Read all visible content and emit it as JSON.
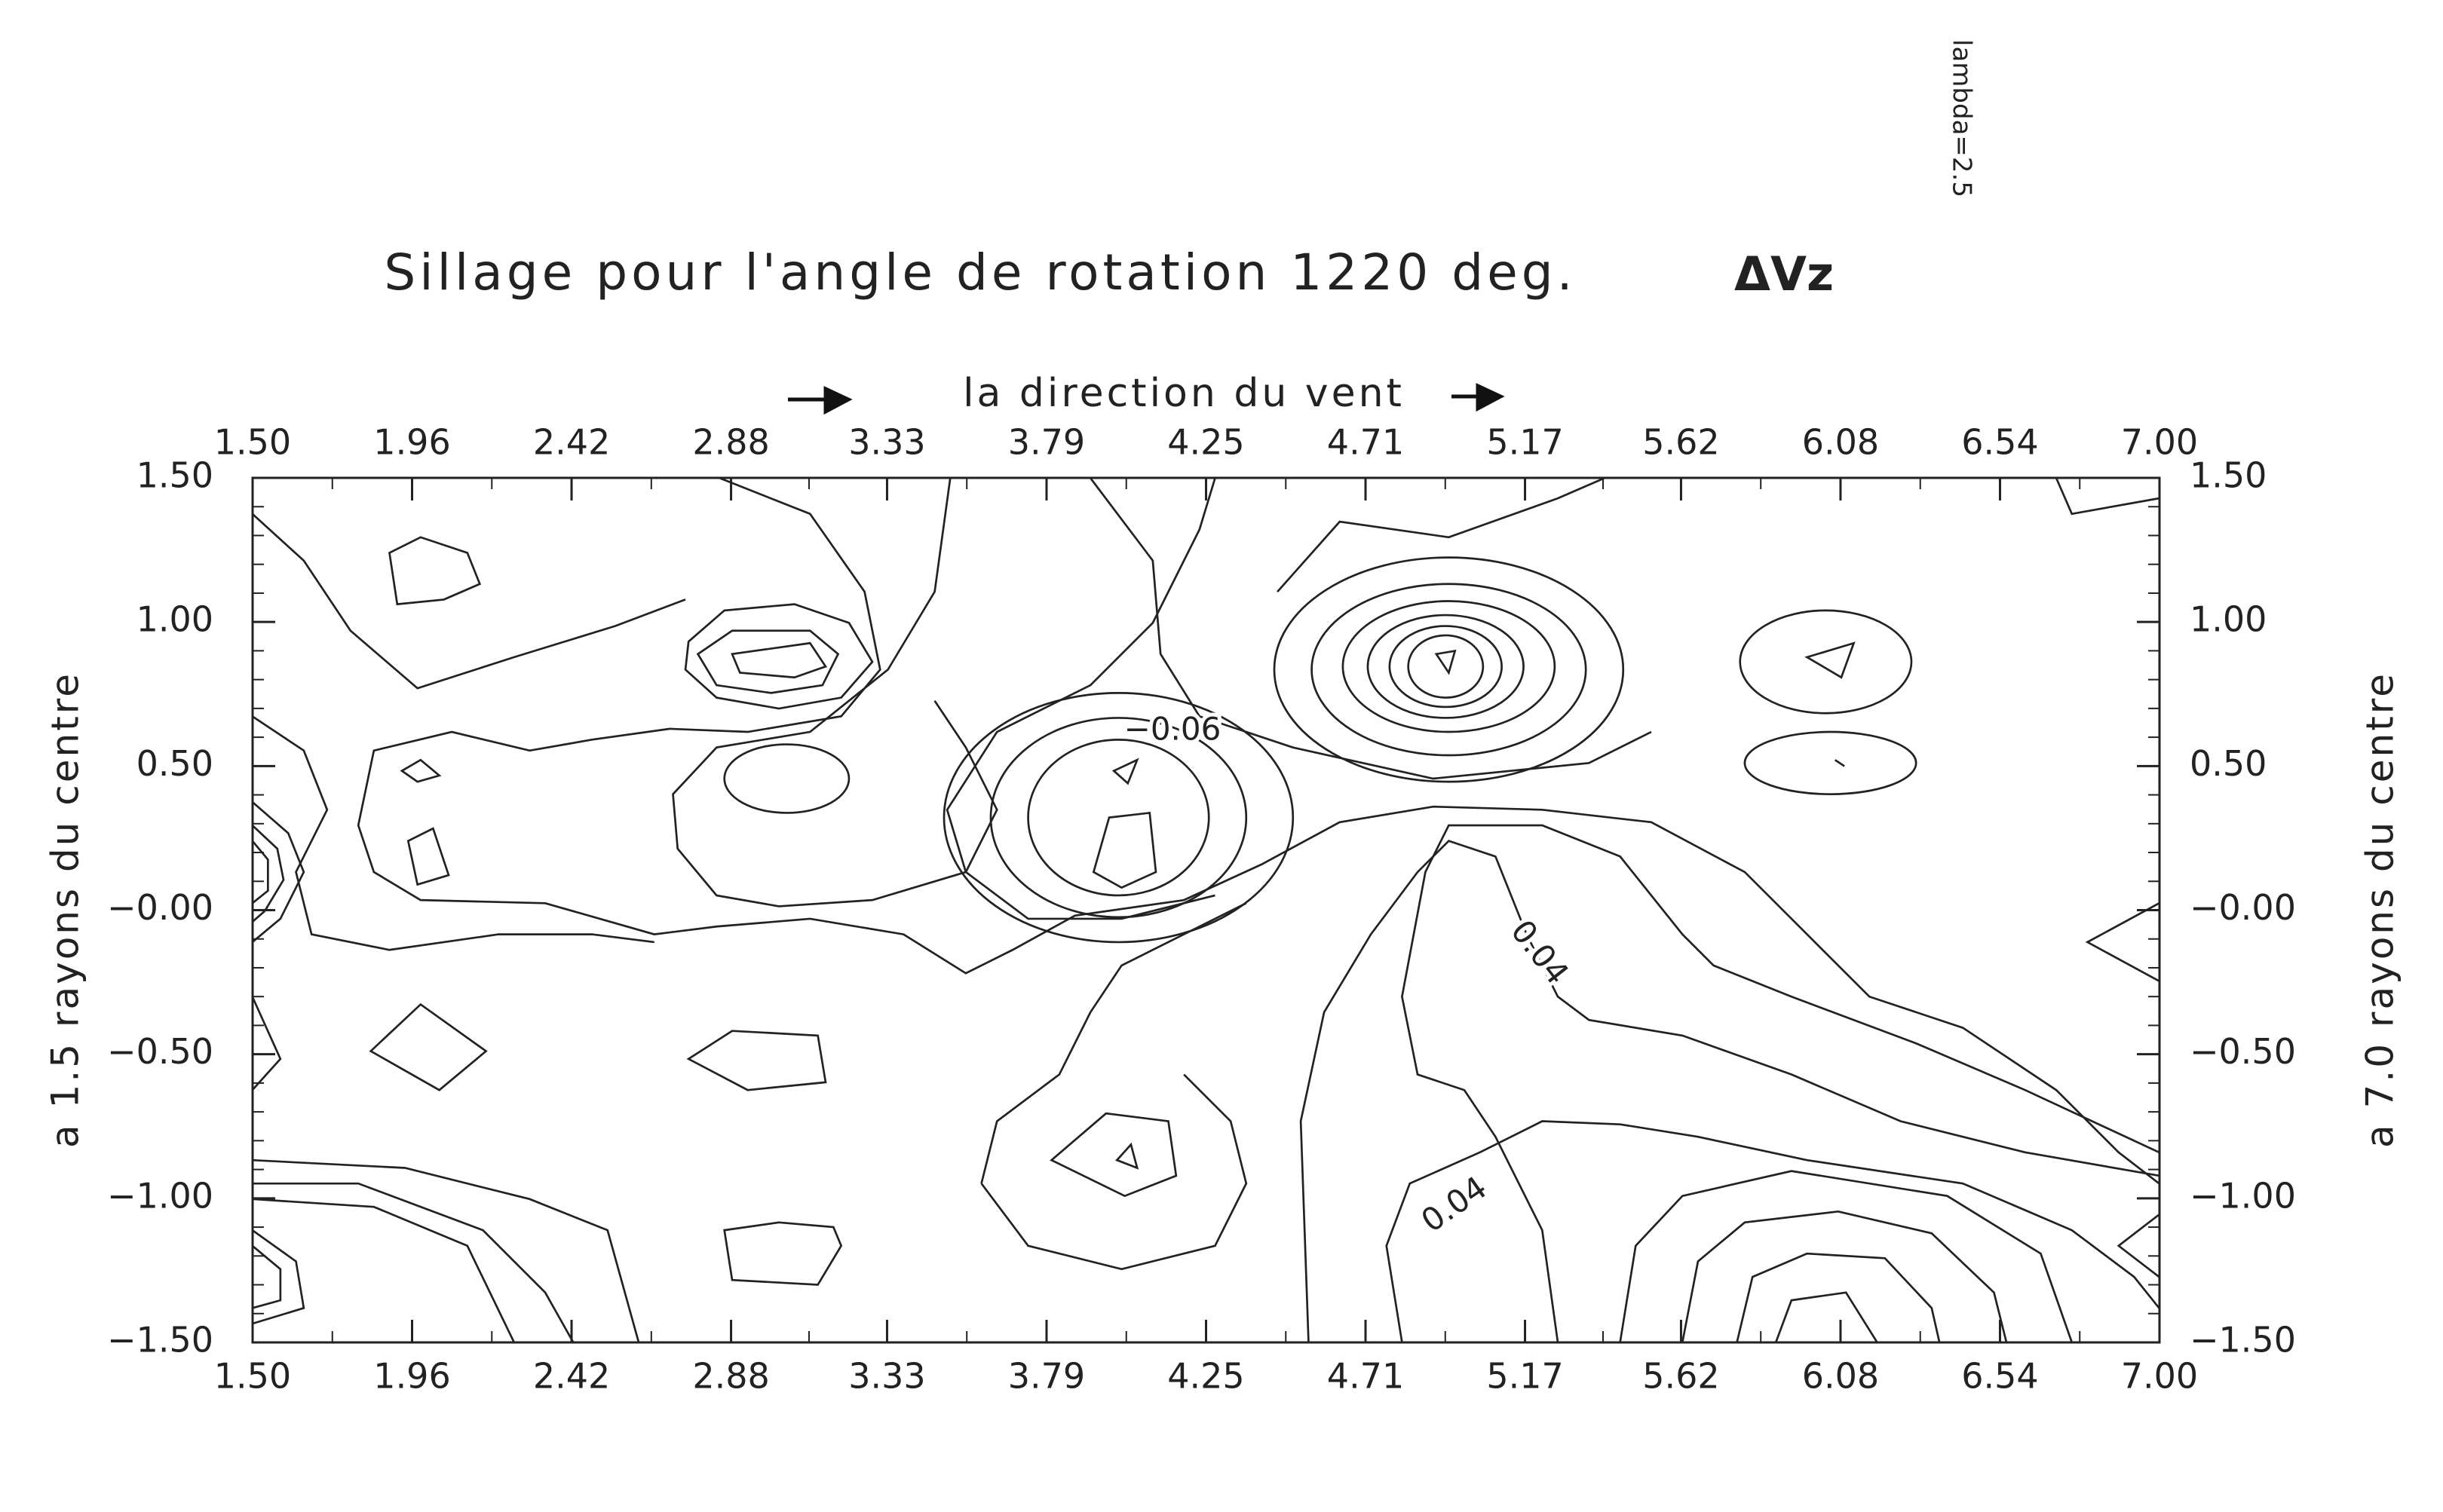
{
  "chart_data": {
    "type": "contour",
    "title": "Sillage pour l'angle de rotation 1220 deg.",
    "title_annotation": "ΔVz",
    "side_note": "lambda=2.5",
    "x2label": "la direction du vent",
    "ylabel": "a 1.5 rayons du centre",
    "y2label": "a 7.0 rayons du centre",
    "xlim": [
      1.5,
      7.0
    ],
    "ylim": [
      -1.5,
      1.5
    ],
    "xticks": [
      {
        "value": 1.5,
        "label": "1.50"
      },
      1.96,
      2.42,
      2.88,
      3.33,
      3.79,
      4.25,
      4.71,
      5.17,
      5.62,
      6.08,
      6.54,
      {
        "value": 7.0,
        "label": "7.00"
      }
    ],
    "yticks": [
      {
        "value": 1.5,
        "label": "1.50"
      },
      {
        "value": 1.0,
        "label": "1.00"
      },
      {
        "value": 0.5,
        "label": "0.50"
      },
      {
        "value": 0,
        "label": "−0.00"
      },
      {
        "value": -0.5,
        "label": "−0.50"
      },
      {
        "value": -1.0,
        "label": "−1.00"
      },
      {
        "value": -1.5,
        "label": "−1.50"
      }
    ],
    "contour_labels": [
      {
        "value": -0.06,
        "label": "−0.06"
      },
      {
        "value": 0.04,
        "label": "0.04"
      },
      {
        "value": 0.04,
        "label": "0.04"
      }
    ]
  }
}
